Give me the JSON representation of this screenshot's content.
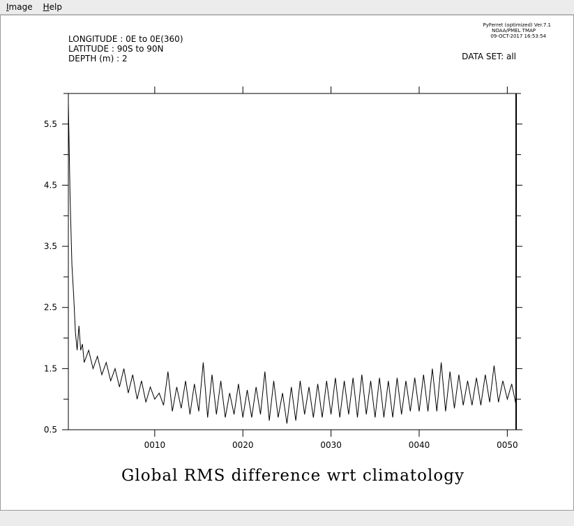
{
  "menu": {
    "items": [
      {
        "label": "Image",
        "accel": "I",
        "rest": "mage"
      },
      {
        "label": "Help",
        "accel": "H",
        "rest": "elp"
      }
    ]
  },
  "header": {
    "longitude": "LONGITUDE : 0E to 0E(360)",
    "latitude": "LATITUDE : 90S to 90N",
    "depth": "DEPTH (m) : 2",
    "ferret_version": "PyFerret (optimized) Ver.7.1",
    "ferret_org": "NOAA/PMEL TMAP",
    "ferret_date": "09-OCT-2017 16:53:54",
    "dataset": "DATA SET: all"
  },
  "chart_data": {
    "type": "line",
    "title": "Global RMS difference wrt climatology",
    "xlabel": "",
    "ylabel": "",
    "xlim": [
      0.2,
      51.0
    ],
    "ylim": [
      0.5,
      6.0
    ],
    "x_ticks": [
      "0010",
      "0020",
      "0030",
      "0040",
      "0050"
    ],
    "x_tick_values": [
      10,
      20,
      30,
      40,
      50
    ],
    "y_ticks": [
      "0.5",
      "1.5",
      "2.5",
      "3.5",
      "4.5",
      "5.5"
    ],
    "y_tick_values": [
      0.5,
      1.5,
      2.5,
      3.5,
      4.5,
      5.5
    ],
    "grid": false,
    "series": [
      {
        "x": [
          0.2,
          0.4,
          0.6,
          0.8,
          1.0,
          1.2,
          1.4,
          1.6,
          1.8,
          2.0,
          2.5,
          3.0,
          3.5,
          4.0,
          4.5,
          5.0,
          5.5,
          6.0,
          6.5,
          7.0,
          7.5,
          8.0,
          8.5,
          9.0,
          9.5,
          10.0,
          10.5,
          11.0,
          11.5,
          12.0,
          12.5,
          13.0,
          13.5,
          14.0,
          14.5,
          15.0,
          15.5,
          16.0,
          16.5,
          17.0,
          17.5,
          18.0,
          18.5,
          19.0,
          19.5,
          20.0,
          20.5,
          21.0,
          21.5,
          22.0,
          22.5,
          23.0,
          23.5,
          24.0,
          24.5,
          25.0,
          25.5,
          26.0,
          26.5,
          27.0,
          27.5,
          28.0,
          28.5,
          29.0,
          29.5,
          30.0,
          30.5,
          31.0,
          31.5,
          32.0,
          32.5,
          33.0,
          33.5,
          34.0,
          34.5,
          35.0,
          35.5,
          36.0,
          36.5,
          37.0,
          37.5,
          38.0,
          38.5,
          39.0,
          39.5,
          40.0,
          40.5,
          41.0,
          41.5,
          42.0,
          42.5,
          43.0,
          43.5,
          44.0,
          44.5,
          45.0,
          45.5,
          46.0,
          46.5,
          47.0,
          47.5,
          48.0,
          48.5,
          49.0,
          49.5,
          50.0,
          50.5,
          51.0
        ],
        "values": [
          5.85,
          4.3,
          3.2,
          2.7,
          2.1,
          1.8,
          2.2,
          1.8,
          1.9,
          1.6,
          1.8,
          1.5,
          1.7,
          1.4,
          1.6,
          1.3,
          1.5,
          1.2,
          1.5,
          1.1,
          1.4,
          1.0,
          1.3,
          0.95,
          1.2,
          1.0,
          1.1,
          0.9,
          1.45,
          0.8,
          1.2,
          0.85,
          1.3,
          0.75,
          1.25,
          0.8,
          1.6,
          0.7,
          1.4,
          0.75,
          1.3,
          0.7,
          1.1,
          0.75,
          1.25,
          0.7,
          1.15,
          0.7,
          1.2,
          0.75,
          1.45,
          0.65,
          1.3,
          0.7,
          1.1,
          0.6,
          1.2,
          0.65,
          1.3,
          0.75,
          1.2,
          0.7,
          1.25,
          0.7,
          1.3,
          0.75,
          1.35,
          0.7,
          1.3,
          0.75,
          1.35,
          0.7,
          1.4,
          0.75,
          1.3,
          0.7,
          1.35,
          0.7,
          1.3,
          0.7,
          1.35,
          0.75,
          1.3,
          0.8,
          1.35,
          0.8,
          1.4,
          0.8,
          1.5,
          0.8,
          1.6,
          0.8,
          1.45,
          0.85,
          1.4,
          0.9,
          1.3,
          0.9,
          1.35,
          0.9,
          1.4,
          0.95,
          1.55,
          0.95,
          1.3,
          1.0,
          1.25,
          0.9
        ]
      }
    ]
  }
}
